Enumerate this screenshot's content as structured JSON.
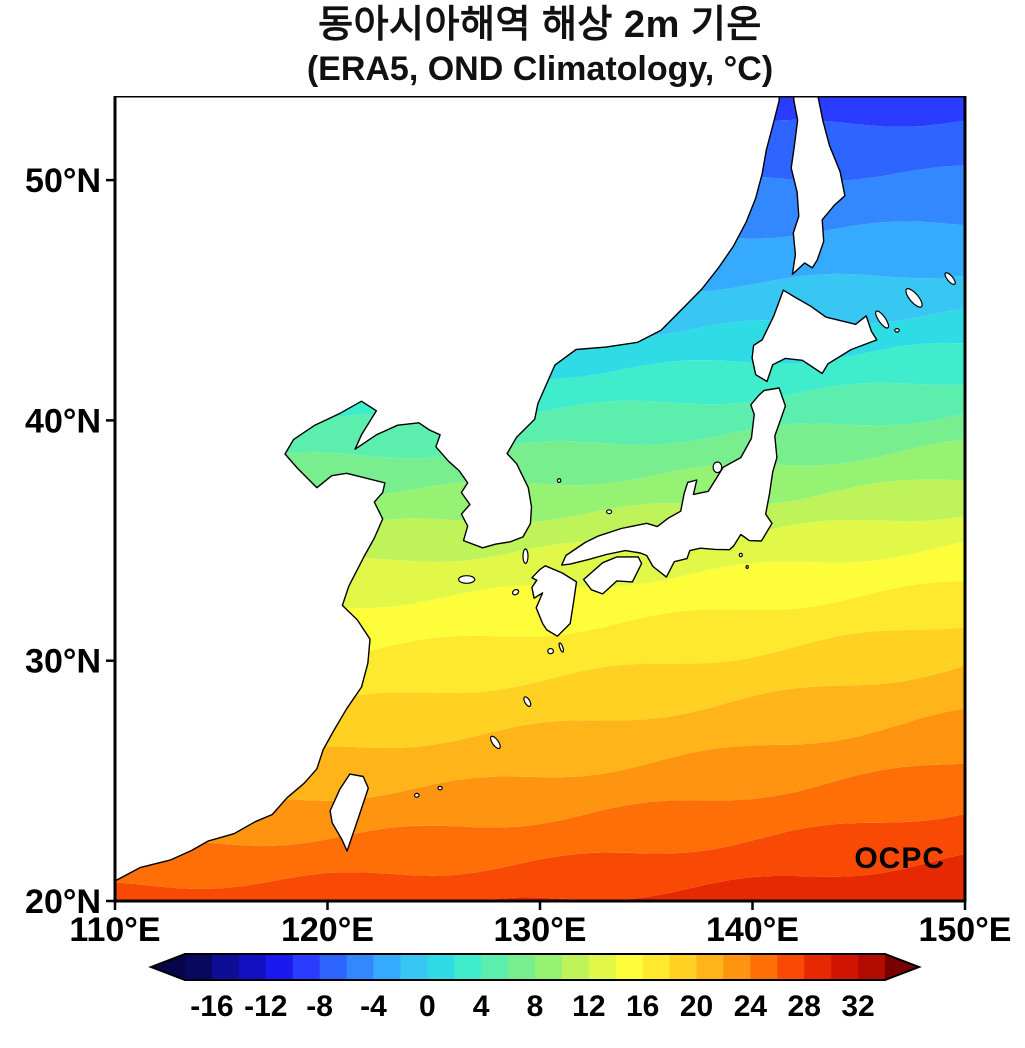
{
  "page": {
    "background": "#ffffff"
  },
  "header": {
    "title": "동아시아해역 해상 2m 기온",
    "subtitle": "(ERA5, OND Climatology, °C)"
  },
  "watermark": "OCPC",
  "chart_data": {
    "type": "heatmap",
    "title": "동아시아해역 해상 2m 기온",
    "subtitle": "(ERA5, OND Climatology, °C)",
    "dataset": "ERA5",
    "season": "OND",
    "variable": "2m temperature over sea, East Asia marginal seas",
    "units": "°C",
    "lon_range_degE": [
      110,
      150
    ],
    "lat_range_degN": [
      20,
      53.5
    ],
    "grid": false,
    "legend_position": "bottom",
    "x_ticks": [
      {
        "value": 110,
        "label": "110°E"
      },
      {
        "value": 120,
        "label": "120°E"
      },
      {
        "value": 130,
        "label": "130°E"
      },
      {
        "value": 140,
        "label": "140°E"
      },
      {
        "value": 150,
        "label": "150°E"
      }
    ],
    "y_ticks": [
      {
        "value": 20,
        "label": "20°N"
      },
      {
        "value": 30,
        "label": "30°N"
      },
      {
        "value": 40,
        "label": "40°N"
      },
      {
        "value": 50,
        "label": "50°N"
      }
    ],
    "colorbar": {
      "min": -18,
      "max": 34,
      "interval": 2,
      "tick_values": [
        -16,
        -12,
        -8,
        -4,
        0,
        4,
        8,
        12,
        16,
        20,
        24,
        28,
        32
      ],
      "tick_labels": [
        "-16",
        "-12",
        "-8",
        "-4",
        "0",
        "4",
        "8",
        "12",
        "16",
        "20",
        "24",
        "28",
        "32"
      ],
      "colors": [
        "#08085e",
        "#0d0d96",
        "#1111c3",
        "#1a1aee",
        "#2a3cff",
        "#2e64ff",
        "#3388ff",
        "#36aaff",
        "#38c6f2",
        "#2fdce6",
        "#3feccc",
        "#5ceeac",
        "#78ee8e",
        "#96f272",
        "#bef45a",
        "#e2f848",
        "#fdfd3a",
        "#ffe92e",
        "#ffd122",
        "#ffb41a",
        "#ff9410",
        "#ff6f08",
        "#f84a04",
        "#e62803",
        "#cf1402",
        "#b30a02"
      ],
      "arrow_left_color": "#050548",
      "arrow_right_color": "#7a0101"
    },
    "isotherms_degC": [
      {
        "temp": 28,
        "lat_at_110E": 19.2,
        "lat_at_130E": 20.0,
        "lat_at_150E": 21.8
      },
      {
        "temp": 26,
        "lat_at_110E": 20.6,
        "lat_at_130E": 21.6,
        "lat_at_150E": 23.8
      },
      {
        "temp": 24,
        "lat_at_110E": 22.2,
        "lat_at_130E": 23.4,
        "lat_at_150E": 25.8
      },
      {
        "temp": 22,
        "lat_at_110E": 23.8,
        "lat_at_130E": 25.2,
        "lat_at_150E": 27.8
      },
      {
        "temp": 20,
        "lat_at_110E": 25.6,
        "lat_at_130E": 27.2,
        "lat_at_150E": 29.8
      },
      {
        "temp": 18,
        "lat_at_110E": 27.4,
        "lat_at_130E": 29.2,
        "lat_at_150E": 31.6
      },
      {
        "temp": 16,
        "lat_at_110E": 29.4,
        "lat_at_130E": 31.2,
        "lat_at_150E": 33.2
      },
      {
        "temp": 14,
        "lat_at_110E": 31.6,
        "lat_at_130E": 33.0,
        "lat_at_150E": 34.8
      },
      {
        "temp": 12,
        "lat_at_110E": 33.6,
        "lat_at_130E": 34.6,
        "lat_at_150E": 36.2
      },
      {
        "temp": 10,
        "lat_at_110E": 35.4,
        "lat_at_130E": 36.0,
        "lat_at_150E": 37.6
      },
      {
        "temp": 8,
        "lat_at_110E": 36.9,
        "lat_at_130E": 37.4,
        "lat_at_150E": 39.0
      },
      {
        "temp": 6,
        "lat_at_110E": 38.3,
        "lat_at_130E": 38.9,
        "lat_at_150E": 40.3
      },
      {
        "temp": 4,
        "lat_at_110E": 39.7,
        "lat_at_130E": 40.4,
        "lat_at_150E": 41.7
      },
      {
        "temp": 2,
        "lat_at_110E": 41.0,
        "lat_at_130E": 41.9,
        "lat_at_150E": 43.1
      },
      {
        "temp": 0,
        "lat_at_110E": 42.4,
        "lat_at_130E": 43.4,
        "lat_at_150E": 44.5
      },
      {
        "temp": -2,
        "lat_at_110E": 44.2,
        "lat_at_130E": 45.2,
        "lat_at_150E": 46.2
      },
      {
        "temp": -4,
        "lat_at_110E": 46.3,
        "lat_at_130E": 47.3,
        "lat_at_150E": 48.2
      },
      {
        "temp": -6,
        "lat_at_110E": 48.6,
        "lat_at_130E": 49.6,
        "lat_at_150E": 50.4
      },
      {
        "temp": -8,
        "lat_at_110E": 51.0,
        "lat_at_130E": 51.9,
        "lat_at_150E": 52.5
      },
      {
        "temp": -10,
        "lat_at_110E": 53.0,
        "lat_at_130E": 53.7,
        "lat_at_150E": 54.1
      }
    ],
    "watermark": "OCPC"
  }
}
